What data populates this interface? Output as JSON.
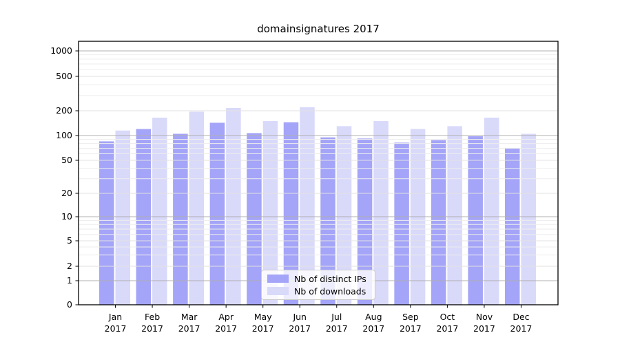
{
  "chart_data": {
    "type": "bar",
    "title": "domainsignatures 2017",
    "categories": [
      "Jan",
      "Feb",
      "Mar",
      "Apr",
      "May",
      "Jun",
      "Jul",
      "Aug",
      "Sep",
      "Oct",
      "Nov",
      "Dec"
    ],
    "category_year": "2017",
    "series": [
      {
        "name": "Nb of distinct IPs",
        "color": "#a4a4f8",
        "values": [
          85,
          120,
          105,
          143,
          107,
          145,
          95,
          92,
          82,
          88,
          98,
          70
        ]
      },
      {
        "name": "Nb of downloads",
        "color": "#d9d9fa",
        "values": [
          115,
          165,
          195,
          215,
          150,
          220,
          130,
          150,
          120,
          130,
          165,
          105
        ]
      }
    ],
    "yscale": "symlog",
    "ylabel": "",
    "xlabel": "",
    "yticks": [
      0,
      1,
      2,
      5,
      10,
      20,
      50,
      100,
      200,
      500,
      1000
    ],
    "ylim": [
      0,
      1300
    ],
    "grid": "both",
    "legend_position": "lower center",
    "colors": {
      "major_grid": "#b0b0b0",
      "labeled_minor_grid": "#e2e2e2",
      "minor_grid": "#ededed",
      "axis": "#000000",
      "text": "#000000",
      "background": "#ffffff"
    }
  }
}
